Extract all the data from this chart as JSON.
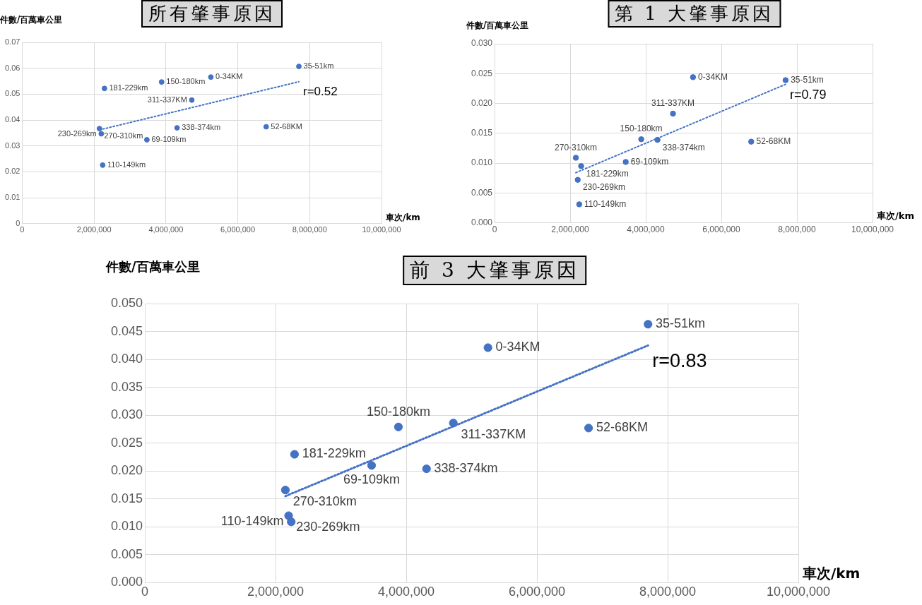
{
  "chart_data": [
    {
      "type": "scatter",
      "title": "所有肇事原因",
      "ylabel": "件數/百萬車公里",
      "xlabel": "車次/km",
      "grid": true,
      "legend": false,
      "marker": "circle",
      "xlim": [
        0,
        10000000
      ],
      "xticks": [
        {
          "value": 0,
          "label": "0"
        },
        {
          "value": 2000000,
          "label": "2,000,000"
        },
        {
          "value": 4000000,
          "label": "4,000,000"
        },
        {
          "value": 6000000,
          "label": "6,000,000"
        },
        {
          "value": 8000000,
          "label": "8,000,000"
        },
        {
          "value": 10000000,
          "label": "10,000,000"
        }
      ],
      "ylim": [
        0,
        0.07
      ],
      "yticks": [
        0,
        0.01,
        0.02,
        0.03,
        0.04,
        0.05,
        0.06,
        0.07
      ],
      "annotations": [
        "r=0.52"
      ],
      "series": [
        {
          "type": "scatter",
          "color": "#4472c4",
          "x": [
            7700000,
            5250000,
            3880000,
            2290000,
            4720000,
            2150000,
            2200000,
            4310000,
            3470000,
            6790000,
            2240000
          ],
          "values": [
            0.0607,
            0.0566,
            0.0547,
            0.0522,
            0.0477,
            0.0367,
            0.0347,
            0.037,
            0.0324,
            0.0374,
            0.0226
          ],
          "value_labels": [
            "35-51km",
            "0-34KM",
            "150-180km",
            "181-229km",
            "311-337KM",
            "270-310km",
            "230-269km",
            "338-374km",
            "69-109km",
            "52-68KM",
            "110-149km"
          ]
        },
        {
          "type": "line",
          "color": "#4472c4",
          "line_style": "dotted",
          "marker": "none",
          "x": [
            2150000,
            7700000
          ],
          "values": [
            0.0362,
            0.0548
          ]
        }
      ]
    },
    {
      "type": "scatter",
      "title": "第 1 大肇事原因",
      "ylabel": "件數/百萬車公里",
      "xlabel": "車次/km",
      "grid": true,
      "legend": false,
      "marker": "circle",
      "xlim": [
        0,
        10000000
      ],
      "xticks": [
        {
          "value": 0,
          "label": "0"
        },
        {
          "value": 2000000,
          "label": "2,000,000"
        },
        {
          "value": 4000000,
          "label": "4,000,000"
        },
        {
          "value": 6000000,
          "label": "6,000,000"
        },
        {
          "value": 8000000,
          "label": "8,000,000"
        },
        {
          "value": 10000000,
          "label": "10,000,000"
        }
      ],
      "ylim": [
        0,
        0.03
      ],
      "yticks": [
        {
          "value": 0,
          "label": "0.000"
        },
        {
          "value": 0.005,
          "label": "0.005"
        },
        {
          "value": 0.01,
          "label": "0.010"
        },
        {
          "value": 0.015,
          "label": "0.015"
        },
        {
          "value": 0.02,
          "label": "0.020"
        },
        {
          "value": 0.025,
          "label": "0.025"
        },
        {
          "value": 0.03,
          "label": "0.030"
        }
      ],
      "annotations": [
        "r=0.79"
      ],
      "series": [
        {
          "type": "scatter",
          "color": "#4472c4",
          "x": [
            7700000,
            5250000,
            3880000,
            2290000,
            4720000,
            2150000,
            2200000,
            4310000,
            3470000,
            6790000,
            2240000
          ],
          "values": [
            0.0239,
            0.0244,
            0.014,
            0.0095,
            0.0183,
            0.0109,
            0.0072,
            0.0139,
            0.0102,
            0.0136,
            0.0031
          ],
          "value_labels": [
            "35-51km",
            "0-34KM",
            "150-180km",
            "181-229km",
            "311-337KM",
            "270-310km",
            "230-269km",
            "338-374km",
            "69-109km",
            "52-68KM",
            "110-149km"
          ]
        },
        {
          "type": "line",
          "color": "#4472c4",
          "line_style": "dotted",
          "marker": "none",
          "x": [
            2150000,
            7700000
          ],
          "values": [
            0.0084,
            0.0232
          ]
        }
      ]
    },
    {
      "type": "scatter",
      "title": "前 3 大肇事原因",
      "ylabel": "件數/百萬車公里",
      "xlabel": "車次/km",
      "grid": true,
      "legend": false,
      "marker": "circle",
      "xlim": [
        0,
        10000000
      ],
      "xticks": [
        {
          "value": 0,
          "label": "0"
        },
        {
          "value": 2000000,
          "label": "2,000,000"
        },
        {
          "value": 4000000,
          "label": "4,000,000"
        },
        {
          "value": 6000000,
          "label": "6,000,000"
        },
        {
          "value": 8000000,
          "label": "8,000,000"
        },
        {
          "value": 10000000,
          "label": "10,000,000"
        }
      ],
      "ylim": [
        0,
        0.05
      ],
      "yticks": [
        {
          "value": 0,
          "label": "0.000"
        },
        {
          "value": 0.005,
          "label": "0.005"
        },
        {
          "value": 0.01,
          "label": "0.010"
        },
        {
          "value": 0.015,
          "label": "0.015"
        },
        {
          "value": 0.02,
          "label": "0.020"
        },
        {
          "value": 0.025,
          "label": "0.025"
        },
        {
          "value": 0.03,
          "label": "0.030"
        },
        {
          "value": 0.035,
          "label": "0.035"
        },
        {
          "value": 0.04,
          "label": "0.040"
        },
        {
          "value": 0.045,
          "label": "0.045"
        },
        {
          "value": 0.05,
          "label": "0.050"
        }
      ],
      "annotations": [
        "r=0.83"
      ],
      "series": [
        {
          "type": "scatter",
          "color": "#4472c4",
          "x": [
            7700000,
            5250000,
            3880000,
            2290000,
            4720000,
            2150000,
            2200000,
            4310000,
            3470000,
            6790000,
            2240000
          ],
          "values": [
            0.0463,
            0.0421,
            0.0279,
            0.023,
            0.0286,
            0.0166,
            0.012,
            0.0204,
            0.021,
            0.0277,
            0.0109
          ],
          "value_labels": [
            "35-51km",
            "0-34KM",
            "150-180km",
            "181-229km",
            "311-337KM",
            "270-310km",
            "230-269km",
            "338-374km",
            "69-109km",
            "52-68KM",
            "110-149km"
          ]
        },
        {
          "type": "line",
          "color": "#4472c4",
          "line_style": "dotted",
          "marker": "none",
          "x": [
            2150000,
            7700000
          ],
          "values": [
            0.0155,
            0.0425
          ]
        }
      ]
    }
  ]
}
